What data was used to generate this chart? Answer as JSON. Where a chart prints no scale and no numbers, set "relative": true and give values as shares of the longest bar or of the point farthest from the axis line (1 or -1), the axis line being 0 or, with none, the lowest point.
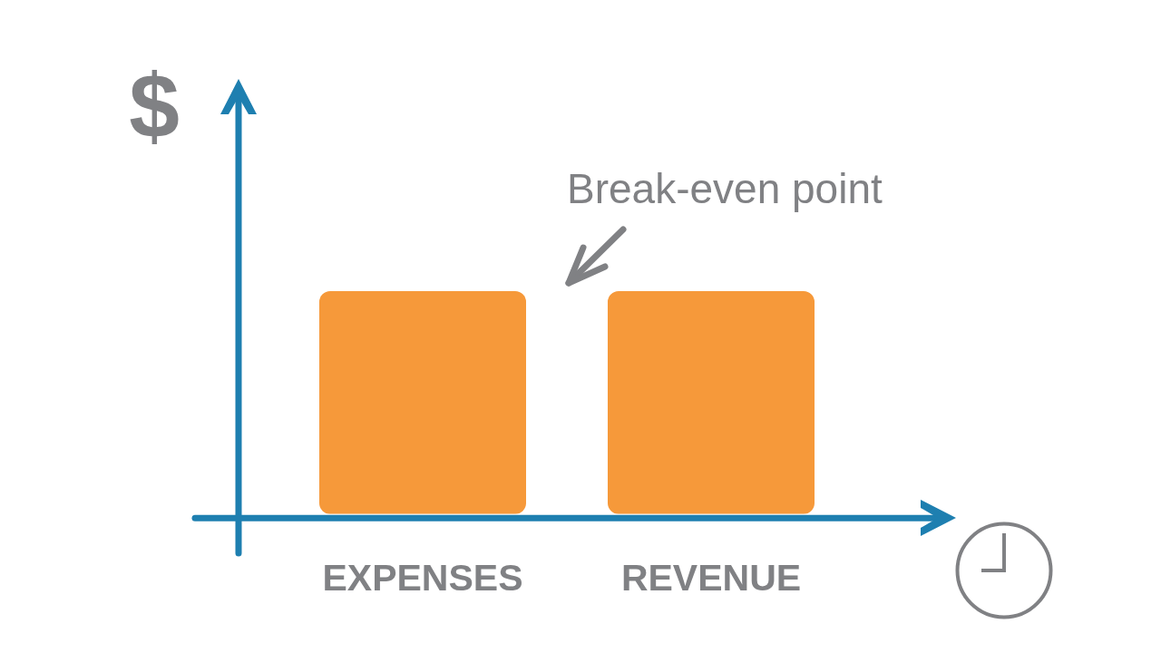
{
  "chart_data": {
    "type": "bar",
    "categories": [
      "EXPENSES",
      "REVENUE"
    ],
    "values": [
      1,
      1
    ],
    "color": "#f6993a",
    "relative": true,
    "ylabel": "$",
    "annotations": [
      "Break-even point"
    ]
  }
}
